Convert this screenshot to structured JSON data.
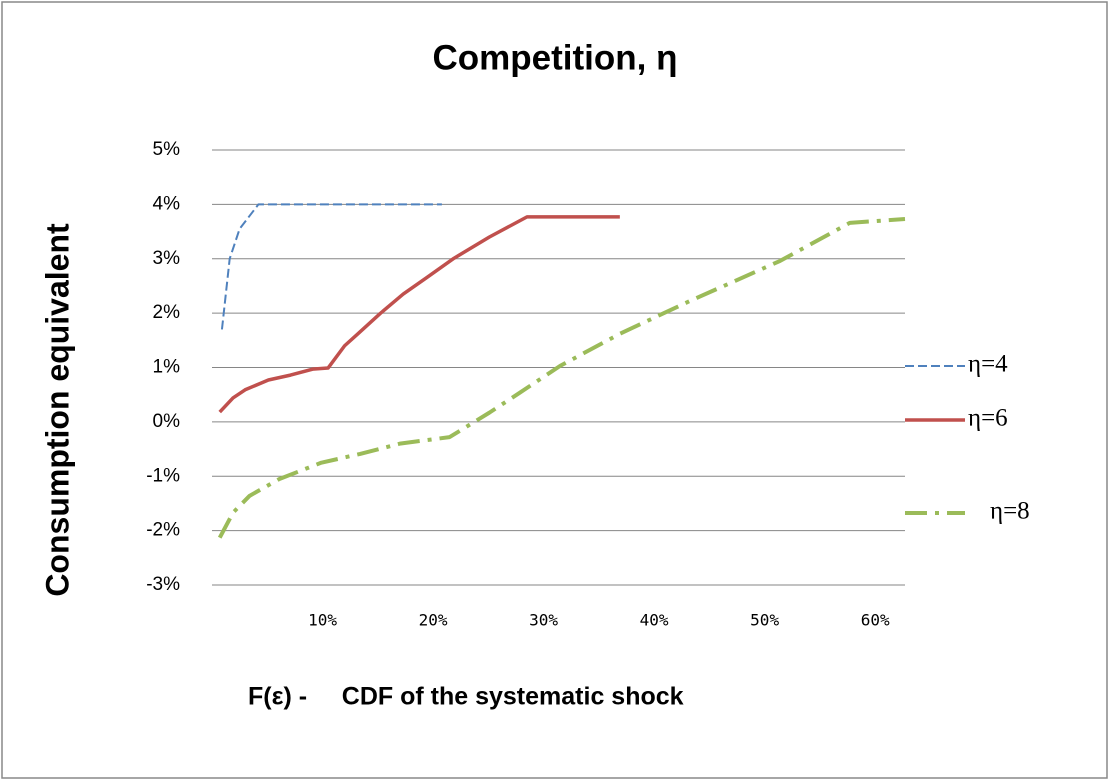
{
  "chart_data": {
    "type": "line",
    "title": "Competition, η",
    "ylabel": "Consumption equivalent",
    "xlabel": "F(ε) -     CDF of the systematic shock",
    "xlim": [
      0,
      62.7
    ],
    "ylim": [
      -3,
      5
    ],
    "xticks": [
      {
        "value": 10,
        "label": "10%"
      },
      {
        "value": 20,
        "label": "20%"
      },
      {
        "value": 30,
        "label": "30%"
      },
      {
        "value": 40,
        "label": "40%"
      },
      {
        "value": 50,
        "label": "50%"
      },
      {
        "value": 60,
        "label": "60%"
      }
    ],
    "yticks": [
      {
        "value": -3,
        "label": "-3%"
      },
      {
        "value": -2,
        "label": "-2%"
      },
      {
        "value": -1,
        "label": "-1%"
      },
      {
        "value": 0,
        "label": "0%"
      },
      {
        "value": 1,
        "label": "1%"
      },
      {
        "value": 2,
        "label": "2%"
      },
      {
        "value": 3,
        "label": "3%"
      },
      {
        "value": 4,
        "label": "4%"
      },
      {
        "value": 5,
        "label": "5%"
      }
    ],
    "grid": true,
    "legend": "right",
    "series": [
      {
        "name": "η=4",
        "color": "#4f81bd",
        "dash": "dashed",
        "x": [
          0.9,
          1.6,
          2.5,
          4.2,
          20.8
        ],
        "values": [
          1.7,
          3.0,
          3.55,
          4.0,
          4.0
        ]
      },
      {
        "name": "η=6",
        "color": "#c0504d",
        "dash": "solid",
        "x": [
          0.7,
          1.9,
          3.0,
          5.1,
          7.1,
          9.1,
          10.5,
          12.0,
          13.2,
          15.2,
          17.3,
          19.4,
          21.9,
          25.1,
          28.5,
          36.9
        ],
        "values": [
          0.18,
          0.44,
          0.59,
          0.77,
          0.86,
          0.97,
          0.99,
          1.4,
          1.62,
          1.99,
          2.35,
          2.65,
          3.01,
          3.4,
          3.77,
          3.77
        ]
      },
      {
        "name": "η=8",
        "color": "#9bbb59",
        "dash": "dashdot",
        "x": [
          0.7,
          1.9,
          3.4,
          6.1,
          9.9,
          13.4,
          17.0,
          21.5,
          25.1,
          27.8,
          31.5,
          36.9,
          43.2,
          51.4,
          57.7,
          62.7
        ],
        "values": [
          -2.13,
          -1.67,
          -1.36,
          -1.05,
          -0.75,
          -0.59,
          -0.4,
          -0.28,
          0.17,
          0.53,
          1.03,
          1.62,
          2.22,
          2.96,
          3.66,
          3.73
        ]
      }
    ]
  }
}
